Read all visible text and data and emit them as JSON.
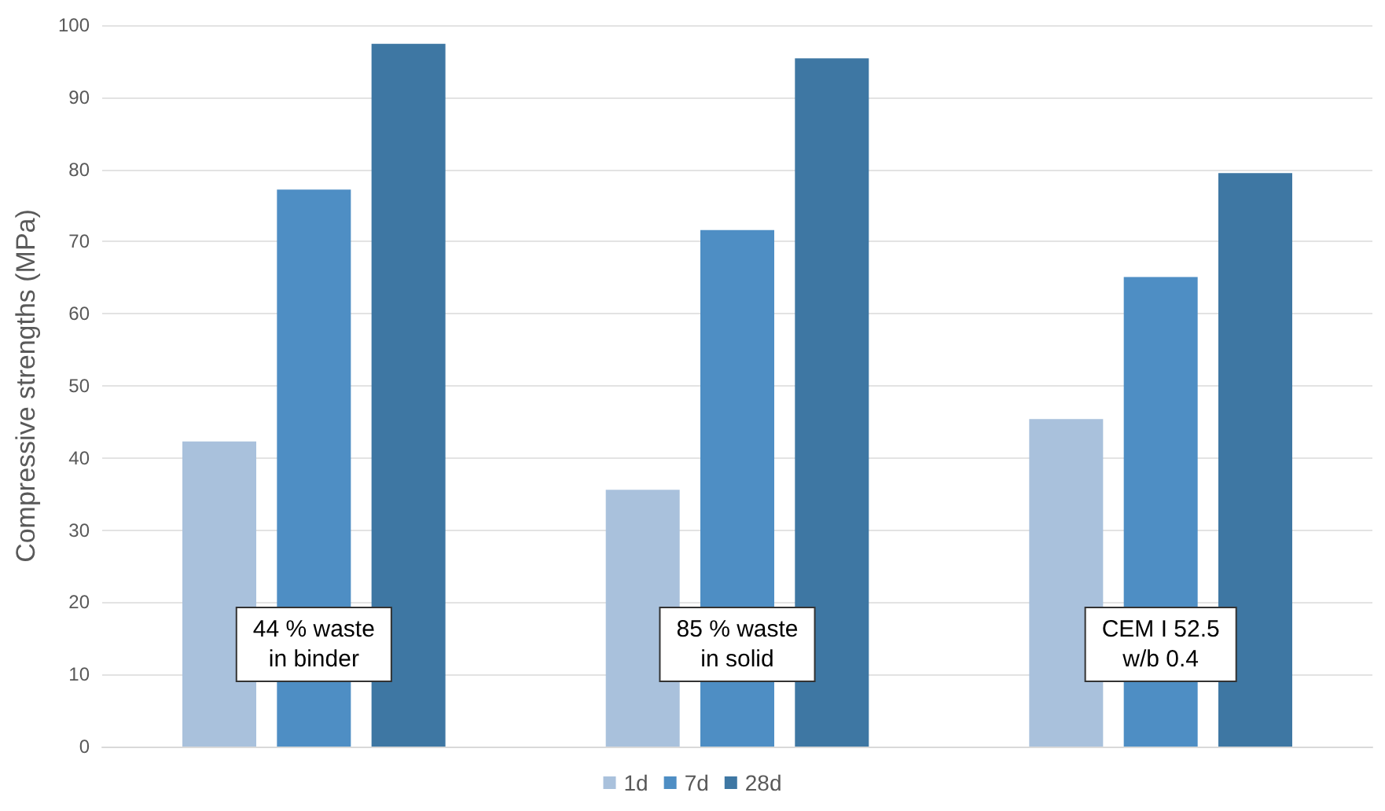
{
  "chart_data": {
    "type": "bar",
    "ylabel": "Compressive strengths (MPa)",
    "categories": [
      "44 % waste\nin binder",
      "85 % waste\nin solid",
      "CEM I 52.5\nw/b 0.4"
    ],
    "series": [
      {
        "name": "1d",
        "color": "#a9c1dc",
        "values": [
          42.3,
          35.6,
          45.4
        ]
      },
      {
        "name": "7d",
        "color": "#4e8ec4",
        "values": [
          77.2,
          71.6,
          65.1
        ]
      },
      {
        "name": "28d",
        "color": "#3e77a3",
        "values": [
          97.4,
          95.4,
          79.5
        ]
      }
    ],
    "ylim": [
      0,
      100
    ],
    "yticks": [
      0,
      10,
      20,
      30,
      40,
      50,
      60,
      70,
      80,
      90,
      100
    ],
    "grid": "y",
    "legend": "bottom"
  }
}
